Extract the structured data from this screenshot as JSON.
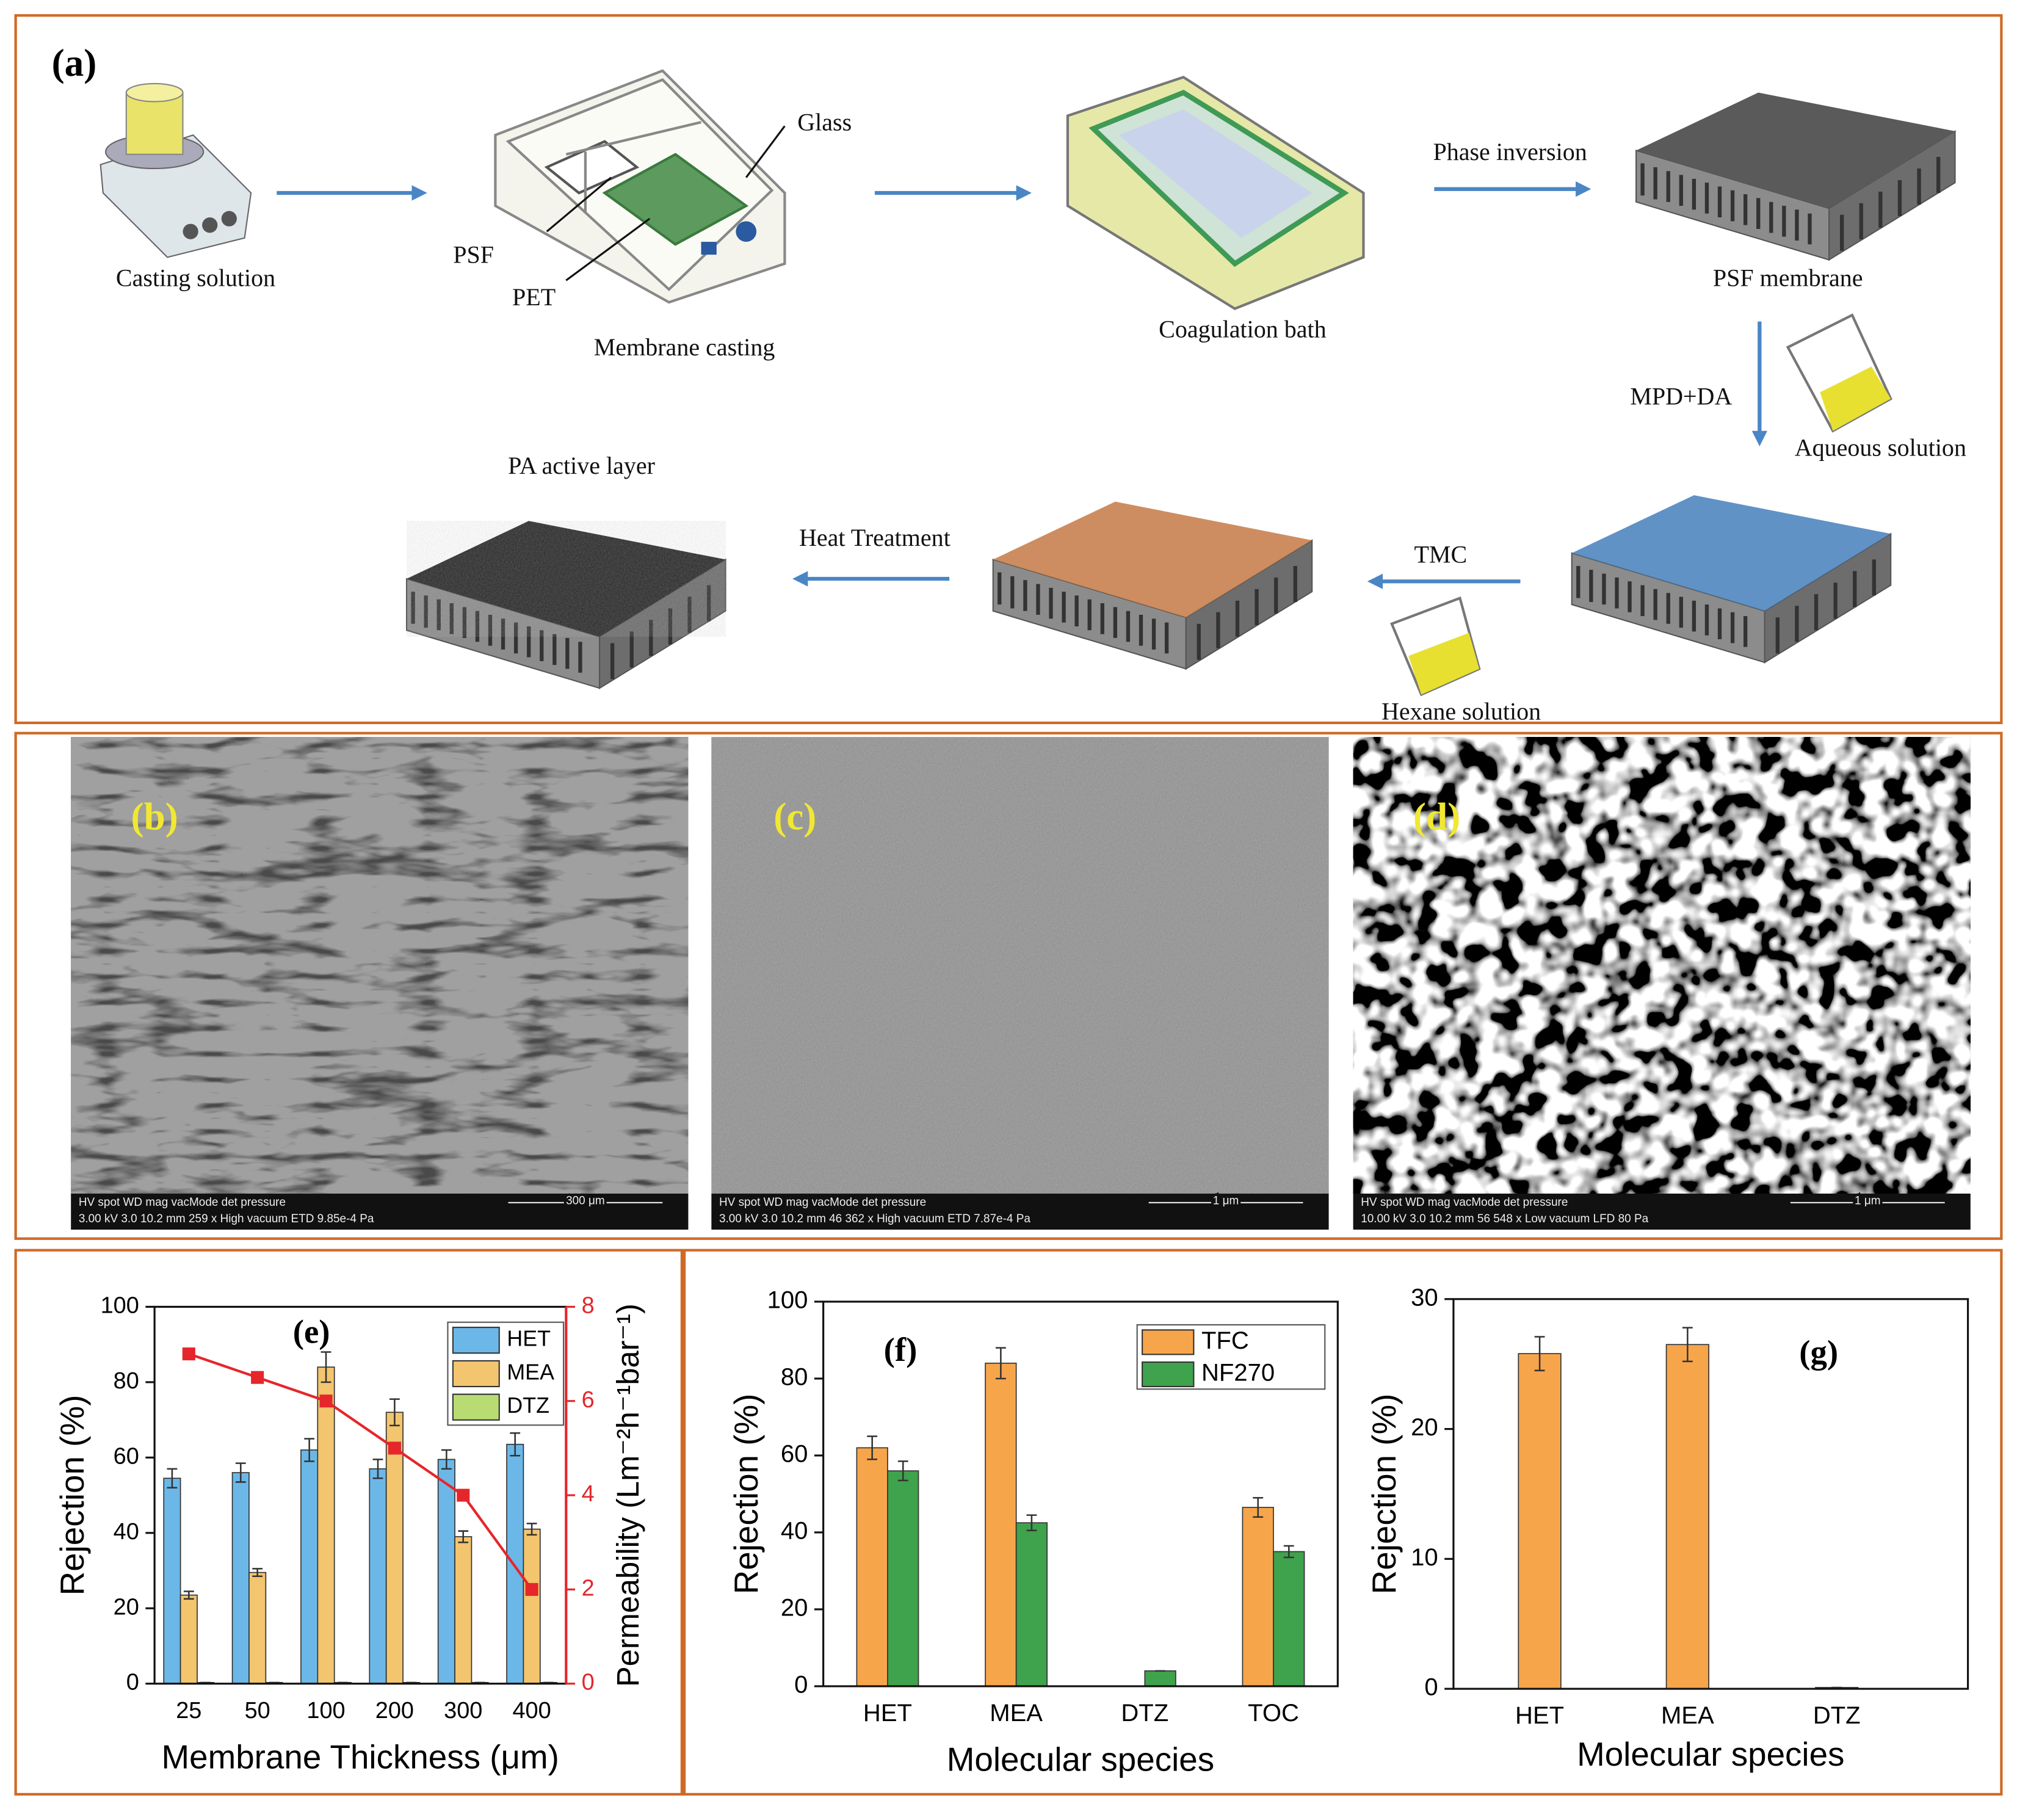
{
  "panel_a": {
    "label": "(a)",
    "texts": [
      "Casting solution",
      "PSF",
      "PET",
      "Glass",
      "Membrane casting",
      "Coagulation bath",
      "Phase inversion",
      "PSF membrane",
      "MPD+DA",
      "Aqueous solution",
      "TMC",
      "Hexane solution",
      "Heat Treatment",
      "PA active layer"
    ]
  },
  "sem_panels": [
    {
      "label": "(b)",
      "info_head": "HV    spot    WD    mag    vacMode    det    pressure",
      "info": "3.00 kV  3.0  10.2 mm  259 x  High vacuum  ETD  9.85e-4 Pa",
      "scale": "300 μm"
    },
    {
      "label": "(c)",
      "info_head": "HV    spot    WD    mag    vacMode    det    pressure",
      "info": "3.00 kV  3.0  10.2 mm  46 362 x  High vacuum  ETD  7.87e-4 Pa",
      "scale": "1 μm"
    },
    {
      "label": "(d)",
      "info_head": "HV    spot    WD    mag    vacMode    det    pressure",
      "info": "10.00 kV  3.0  10.2 mm  56 548 x  Low vacuum  LFD  80 Pa",
      "scale": "1 μm"
    }
  ],
  "chart_data": [
    {
      "type": "bar",
      "annotation": "(e)",
      "x_label": "Membrane Thickness (μm)",
      "y_label": "Rejection (%)",
      "y2_label": "Permeability (Lm⁻²h⁻¹bar⁻¹)",
      "categories": [
        "25",
        "50",
        "100",
        "200",
        "300",
        "400"
      ],
      "series": [
        {
          "name": "HET",
          "color": "#6bb8e8",
          "values": [
            54.5,
            56,
            62,
            57,
            59.5,
            63.5
          ],
          "errors": [
            2.5,
            2.5,
            3,
            2.5,
            2.5,
            3
          ]
        },
        {
          "name": "MEA",
          "color": "#f3c56e",
          "values": [
            23.5,
            29.5,
            84,
            72,
            39,
            41
          ],
          "errors": [
            1,
            1,
            4,
            3.5,
            1.5,
            1.5
          ]
        },
        {
          "name": "DTZ",
          "color": "#b9dc72",
          "values": [
            0.3,
            0.3,
            0.3,
            0.3,
            0.3,
            0.3
          ],
          "errors": [
            0,
            0,
            0,
            0,
            0,
            0
          ]
        }
      ],
      "line": {
        "axis": "y2",
        "color": "#e5262b",
        "values": [
          7,
          6.5,
          6,
          5,
          4,
          2
        ]
      },
      "ylim": [
        0,
        100
      ],
      "yticks": [
        0,
        20,
        40,
        60,
        80,
        100
      ],
      "y2lim": [
        0,
        8
      ],
      "y2ticks": [
        0,
        2,
        4,
        6,
        8
      ],
      "legend": "upper right"
    },
    {
      "type": "bar",
      "annotation": "(f)",
      "x_label": "Molecular species",
      "y_label": "Rejection (%)",
      "categories": [
        "HET",
        "MEA",
        "DTZ",
        "TOC"
      ],
      "series": [
        {
          "name": "TFC",
          "color": "#f7a54b",
          "values": [
            62,
            84,
            0,
            46.5
          ],
          "errors": [
            3,
            4,
            0,
            2.5
          ]
        },
        {
          "name": "NF270",
          "color": "#3fa24c",
          "values": [
            56,
            42.5,
            4,
            35
          ],
          "errors": [
            2.5,
            2,
            0,
            1.5
          ]
        }
      ],
      "ylim": [
        0,
        100
      ],
      "yticks": [
        0,
        20,
        40,
        60,
        80,
        100
      ],
      "legend": "upper right"
    },
    {
      "type": "bar",
      "annotation": "(g)",
      "x_label": "Molecular species",
      "y_label": "Rejection (%)",
      "categories": [
        "HET",
        "MEA",
        "DTZ"
      ],
      "values": [
        25.8,
        26.5,
        0.1
      ],
      "errors": [
        1.3,
        1.3,
        0
      ],
      "color": "#f7a54b",
      "ylim": [
        0,
        30
      ],
      "yticks": [
        0,
        10,
        20,
        30
      ]
    }
  ]
}
